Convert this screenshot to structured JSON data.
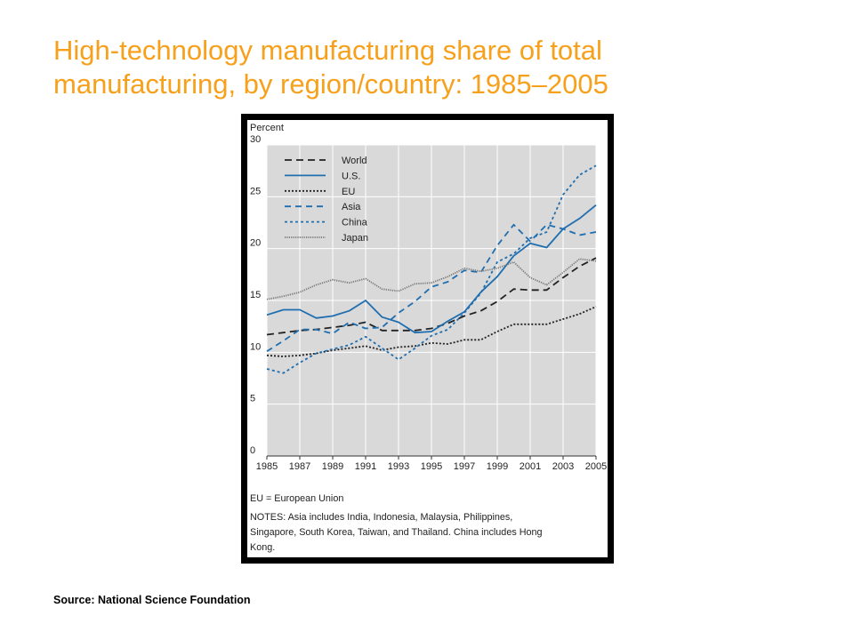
{
  "slide": {
    "title_line1": "High-technology manufacturing share of total",
    "title_line2": "manufacturing, by region/country: 1985–2005",
    "source": "Source:  National Science Foundation"
  },
  "chart_data": {
    "type": "line",
    "title": "",
    "ylabel": "Percent",
    "xlabel": "",
    "ylim": [
      0,
      30
    ],
    "yticks": [
      "0",
      "5",
      "10",
      "15",
      "20",
      "25",
      "30"
    ],
    "xticks": [
      "1985",
      "1987",
      "1989",
      "1991",
      "1993",
      "1995",
      "1997",
      "1999",
      "2001",
      "2003",
      "2005"
    ],
    "grid": true,
    "legend_position": "top-left",
    "x": [
      1985,
      1986,
      1987,
      1988,
      1989,
      1990,
      1991,
      1992,
      1993,
      1994,
      1995,
      1996,
      1997,
      1998,
      1999,
      2000,
      2001,
      2002,
      2003,
      2004,
      2005
    ],
    "series": [
      {
        "name": "World",
        "color": "#222222",
        "dash": "8,5",
        "values": [
          11.7,
          11.9,
          12.1,
          12.2,
          12.4,
          12.6,
          12.9,
          12.1,
          12.1,
          12.1,
          12.3,
          12.8,
          13.5,
          14.0,
          14.9,
          16.1,
          16.0,
          16.0,
          17.2,
          18.3,
          19.1
        ]
      },
      {
        "name": "U.S.",
        "color": "#1f6eb0",
        "dash": "",
        "values": [
          13.6,
          14.1,
          14.1,
          13.3,
          13.5,
          14.0,
          15.0,
          13.4,
          12.9,
          11.9,
          12.0,
          13.0,
          13.9,
          15.8,
          17.3,
          19.3,
          20.5,
          20.1,
          21.9,
          22.9,
          24.2
        ]
      },
      {
        "name": "EU",
        "color": "#222222",
        "dash": "2,2",
        "values": [
          9.7,
          9.6,
          9.7,
          9.9,
          10.2,
          10.4,
          10.6,
          10.2,
          10.5,
          10.6,
          10.9,
          10.8,
          11.2,
          11.2,
          12.0,
          12.7,
          12.7,
          12.7,
          13.2,
          13.7,
          14.4
        ]
      },
      {
        "name": "Asia",
        "color": "#1f6eb0",
        "dash": "7,5",
        "values": [
          10.1,
          11.1,
          12.2,
          12.2,
          11.8,
          12.9,
          12.3,
          12.4,
          13.8,
          14.9,
          16.3,
          16.8,
          17.9,
          17.7,
          20.3,
          22.3,
          20.7,
          22.3,
          21.9,
          21.3,
          21.6
        ]
      },
      {
        "name": "China",
        "color": "#1f6eb0",
        "dash": "3,3",
        "values": [
          8.4,
          8.0,
          9.0,
          9.9,
          10.3,
          10.7,
          11.5,
          10.4,
          9.3,
          10.4,
          11.6,
          12.2,
          13.8,
          15.7,
          18.7,
          19.5,
          21.0,
          21.6,
          25.2,
          27.1,
          28.0
        ]
      },
      {
        "name": "Japan",
        "color": "#777777",
        "dash": "1.2,1.2",
        "values": [
          15.1,
          15.4,
          15.8,
          16.5,
          17.0,
          16.7,
          17.1,
          16.1,
          15.9,
          16.6,
          16.7,
          17.3,
          18.1,
          17.8,
          18.1,
          18.7,
          17.2,
          16.5,
          17.7,
          19.0,
          18.8
        ]
      }
    ],
    "notes": [
      "EU = European Union",
      "NOTES: Asia includes India, Indonesia, Malaysia, Philippines,",
      "Singapore, South Korea, Taiwan, and Thailand. China includes Hong",
      "Kong."
    ]
  }
}
